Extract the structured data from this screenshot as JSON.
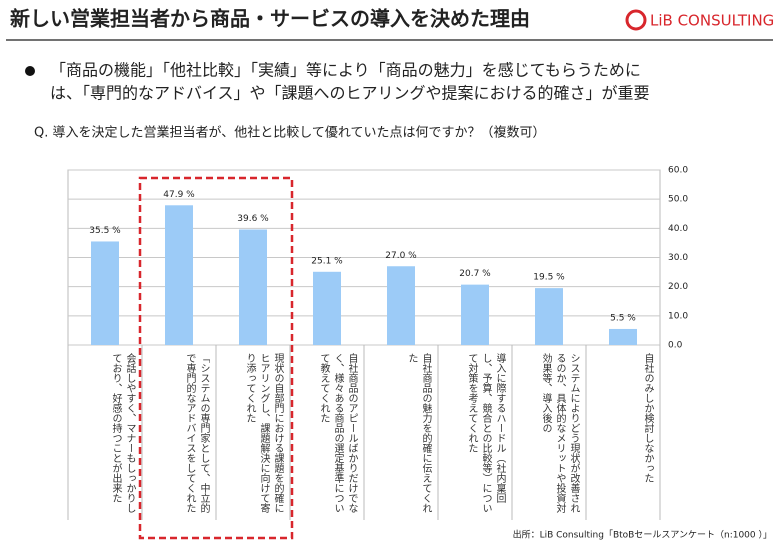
{
  "header": {
    "title": "新しい営業担当者から商品・サービスの導入を決めた理由",
    "logo": "LiB CONSULTING"
  },
  "bullet": [
    "「商品の機能」「他社比較」「実績」等により「商品の魅力」を感じてもらうために",
    "は、「専門的なアドバイス」や「課題へのヒアリングや提案における的確さ」が重要"
  ],
  "question": "Q. 導入を決定した営業担当者が、他社と比較して優れていた点は何ですか？（複数可）",
  "chart_data": {
    "type": "bar",
    "categories": [
      "会話しやすく、マナーもしっかりしており、好感の持つことが出来た",
      "「システムの専門家として、中立的で専門的なアドバイスをしてくれた",
      "現状の自部門における課題を的確にヒアリングし、課題解決に向けて寄り添ってくれた",
      "自社商品のアピールばかりだけでなく、様々ある商品の選定基準について教えてくれた",
      "自社商品の魅力を的確に伝えてくれた",
      "導入に際するハードル（社内稟回し、予算、競合との比較等）について対策を考えてくれた",
      "システムによりどう現状が改善されるのか、具体的なメリットや投資対効果等、導入後の",
      "自社のみしか検討しなかった"
    ],
    "values": [
      35.5,
      47.9,
      39.6,
      25.1,
      27.0,
      20.7,
      19.5,
      5.5
    ],
    "value_labels": [
      "35.5 %",
      "47.9 %",
      "39.6 %",
      "25.1 %",
      "27.0 %",
      "20.7 %",
      "19.5 %",
      "5.5 %"
    ],
    "color": "#9ccbf7",
    "ylim": [
      0,
      60
    ],
    "yticks": [
      {
        "value": 0,
        "label": "0.0"
      },
      {
        "value": 10,
        "label": "10.0"
      },
      {
        "value": 20,
        "label": "20.0"
      },
      {
        "value": 30,
        "label": "30.0"
      },
      {
        "value": 40,
        "label": "40.0"
      },
      {
        "value": 50,
        "label": "50.0"
      },
      {
        "value": 60,
        "label": "60.0"
      }
    ],
    "grid": true
  },
  "source": "出所：LiB Consulting「BtoBセールスアンケート（n:1000 ）」"
}
